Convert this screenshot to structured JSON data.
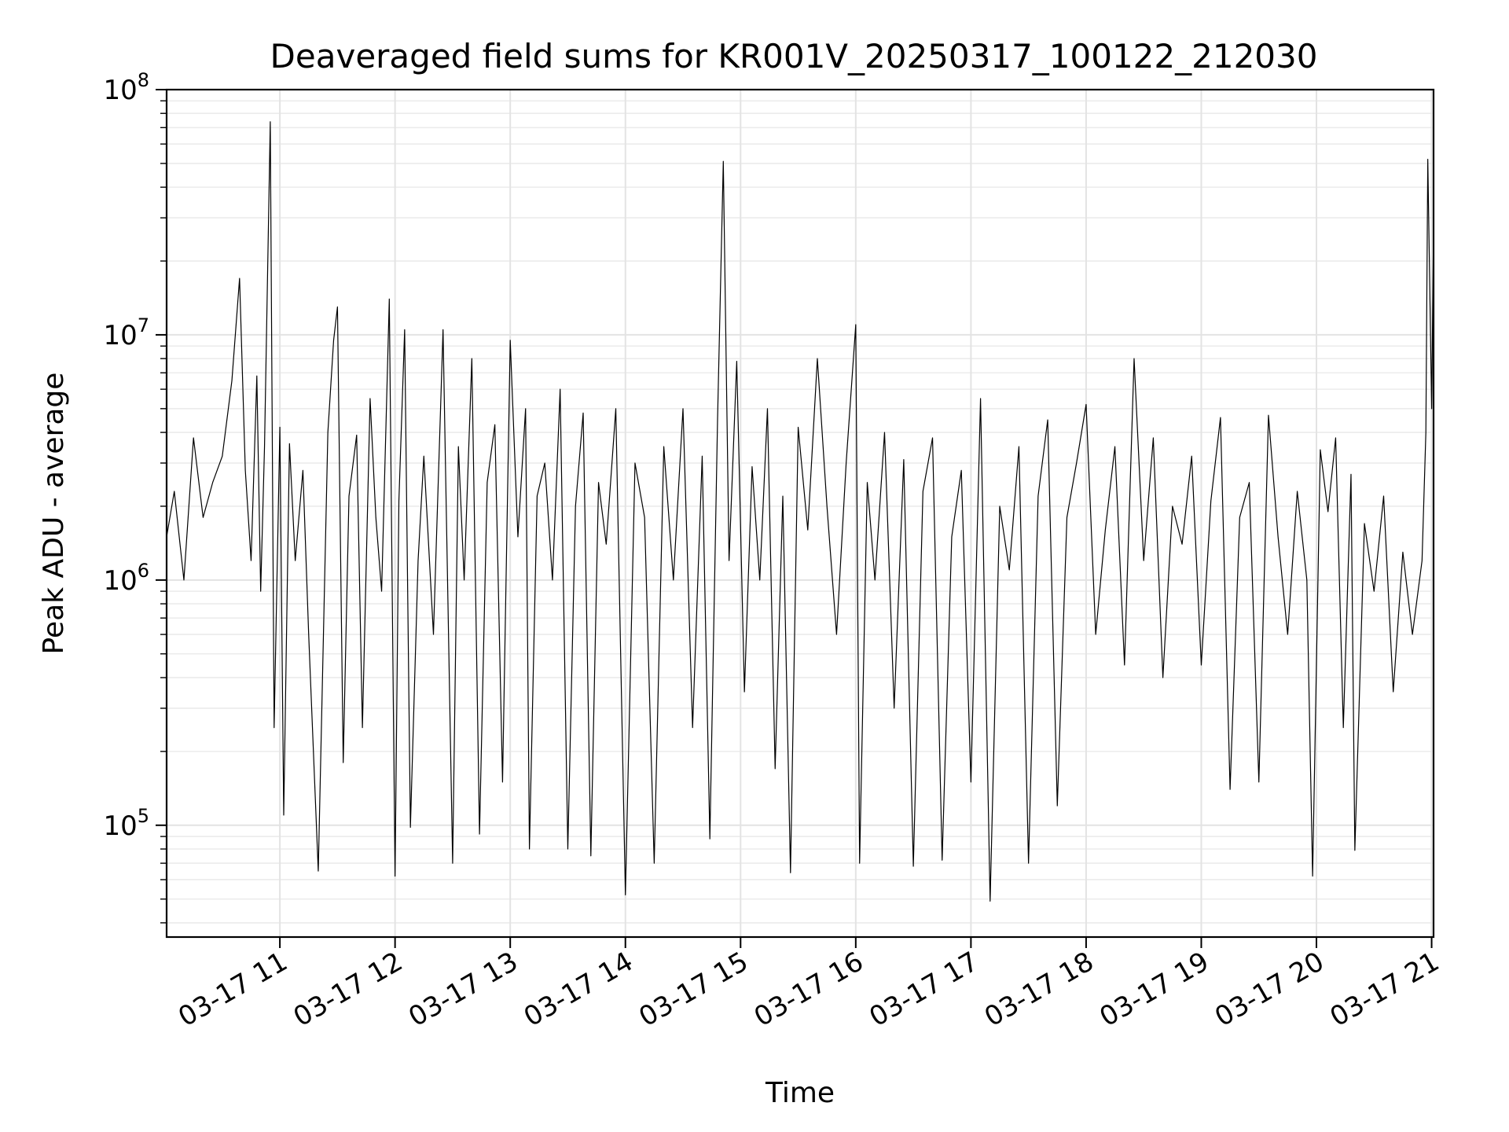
{
  "chart_data": {
    "type": "line",
    "title": "Deaveraged field sums for KR001V_20250317_100122_212030",
    "xlabel": "Time",
    "ylabel": "Peak ADU - average",
    "yscale": "log",
    "xlim": [
      "2025-03-17 10:01",
      "2025-03-17 21:01"
    ],
    "ylim": [
      35000,
      100000000
    ],
    "x_ticks": [
      "03-17 11",
      "03-17 12",
      "03-17 13",
      "03-17 14",
      "03-17 15",
      "03-17 16",
      "03-17 17",
      "03-17 18",
      "03-17 19",
      "03-17 20",
      "03-17 21"
    ],
    "y_ticks": [
      {
        "value": 100000,
        "base": "10",
        "exp": "5"
      },
      {
        "value": 1000000,
        "base": "10",
        "exp": "6"
      },
      {
        "value": 10000000,
        "base": "10",
        "exp": "7"
      },
      {
        "value": 100000000,
        "base": "10",
        "exp": "8"
      }
    ],
    "grid": true,
    "line_color": "#000000",
    "series": [
      {
        "points": [
          [
            "10:01",
            1500000
          ],
          [
            "10:05",
            2300000
          ],
          [
            "10:10",
            1000000
          ],
          [
            "10:15",
            3800000
          ],
          [
            "10:20",
            1800000
          ],
          [
            "10:25",
            2500000
          ],
          [
            "10:30",
            3200000
          ],
          [
            "10:35",
            6500000
          ],
          [
            "10:39",
            17000000
          ],
          [
            "10:42",
            2800000
          ],
          [
            "10:45",
            1200000
          ],
          [
            "10:48",
            6800000
          ],
          [
            "10:50",
            900000
          ],
          [
            "10:52",
            3500000
          ],
          [
            "10:55",
            74000000
          ],
          [
            "10:57",
            250000
          ],
          [
            "11:00",
            4200000
          ],
          [
            "11:02",
            110000
          ],
          [
            "11:05",
            3600000
          ],
          [
            "11:08",
            1200000
          ],
          [
            "11:12",
            2800000
          ],
          [
            "11:15",
            600000
          ],
          [
            "11:20",
            65000
          ],
          [
            "11:25",
            4000000
          ],
          [
            "11:28",
            9500000
          ],
          [
            "11:30",
            13000000
          ],
          [
            "11:33",
            180000
          ],
          [
            "11:36",
            2200000
          ],
          [
            "11:40",
            3900000
          ],
          [
            "11:43",
            250000
          ],
          [
            "11:47",
            5500000
          ],
          [
            "11:50",
            1800000
          ],
          [
            "11:53",
            900000
          ],
          [
            "11:57",
            14000000
          ],
          [
            "12:00",
            62000
          ],
          [
            "12:02",
            2100000
          ],
          [
            "12:05",
            10500000
          ],
          [
            "12:08",
            98000
          ],
          [
            "12:12",
            1200000
          ],
          [
            "12:15",
            3200000
          ],
          [
            "12:20",
            600000
          ],
          [
            "12:25",
            10500000
          ],
          [
            "12:30",
            70000
          ],
          [
            "12:33",
            3500000
          ],
          [
            "12:36",
            1000000
          ],
          [
            "12:40",
            8000000
          ],
          [
            "12:44",
            92000
          ],
          [
            "12:48",
            2500000
          ],
          [
            "12:52",
            4300000
          ],
          [
            "12:56",
            150000
          ],
          [
            "13:00",
            9500000
          ],
          [
            "13:04",
            1500000
          ],
          [
            "13:08",
            5000000
          ],
          [
            "13:10",
            80000
          ],
          [
            "13:14",
            2200000
          ],
          [
            "13:18",
            3000000
          ],
          [
            "13:22",
            1000000
          ],
          [
            "13:26",
            6000000
          ],
          [
            "13:30",
            80000
          ],
          [
            "13:34",
            2000000
          ],
          [
            "13:38",
            4800000
          ],
          [
            "13:42",
            75000
          ],
          [
            "13:46",
            2500000
          ],
          [
            "13:50",
            1400000
          ],
          [
            "13:55",
            5000000
          ],
          [
            "14:00",
            52000
          ],
          [
            "14:05",
            3000000
          ],
          [
            "14:10",
            1800000
          ],
          [
            "14:15",
            70000
          ],
          [
            "14:20",
            3500000
          ],
          [
            "14:25",
            1000000
          ],
          [
            "14:30",
            5000000
          ],
          [
            "14:35",
            250000
          ],
          [
            "14:40",
            3200000
          ],
          [
            "14:44",
            88000
          ],
          [
            "14:48",
            4500000
          ],
          [
            "14:51",
            51000000
          ],
          [
            "14:54",
            1200000
          ],
          [
            "14:58",
            7800000
          ],
          [
            "15:02",
            350000
          ],
          [
            "15:06",
            2900000
          ],
          [
            "15:10",
            1000000
          ],
          [
            "15:14",
            5000000
          ],
          [
            "15:18",
            170000
          ],
          [
            "15:22",
            2200000
          ],
          [
            "15:26",
            64000
          ],
          [
            "15:30",
            4200000
          ],
          [
            "15:35",
            1600000
          ],
          [
            "15:40",
            8000000
          ],
          [
            "15:45",
            2000000
          ],
          [
            "15:50",
            600000
          ],
          [
            "15:55",
            3000000
          ],
          [
            "16:00",
            11000000
          ],
          [
            "16:02",
            70000
          ],
          [
            "16:06",
            2500000
          ],
          [
            "16:10",
            1000000
          ],
          [
            "16:15",
            4000000
          ],
          [
            "16:20",
            300000
          ],
          [
            "16:25",
            3100000
          ],
          [
            "16:30",
            68000
          ],
          [
            "16:35",
            2300000
          ],
          [
            "16:40",
            3800000
          ],
          [
            "16:45",
            72000
          ],
          [
            "16:50",
            1500000
          ],
          [
            "16:55",
            2800000
          ],
          [
            "17:00",
            150000
          ],
          [
            "17:05",
            5500000
          ],
          [
            "17:10",
            49000
          ],
          [
            "17:15",
            2000000
          ],
          [
            "17:20",
            1100000
          ],
          [
            "17:25",
            3500000
          ],
          [
            "17:30",
            70000
          ],
          [
            "17:35",
            2200000
          ],
          [
            "17:40",
            4500000
          ],
          [
            "17:45",
            120000
          ],
          [
            "17:50",
            1800000
          ],
          [
            "17:55",
            3000000
          ],
          [
            "18:00",
            5200000
          ],
          [
            "18:05",
            600000
          ],
          [
            "18:10",
            1600000
          ],
          [
            "18:15",
            3500000
          ],
          [
            "18:20",
            450000
          ],
          [
            "18:25",
            8000000
          ],
          [
            "18:30",
            1200000
          ],
          [
            "18:35",
            3800000
          ],
          [
            "18:40",
            400000
          ],
          [
            "18:45",
            2000000
          ],
          [
            "18:50",
            1400000
          ],
          [
            "18:55",
            3200000
          ],
          [
            "19:00",
            450000
          ],
          [
            "19:05",
            2100000
          ],
          [
            "19:10",
            4600000
          ],
          [
            "19:15",
            140000
          ],
          [
            "19:20",
            1800000
          ],
          [
            "19:25",
            2500000
          ],
          [
            "19:30",
            150000
          ],
          [
            "19:35",
            4700000
          ],
          [
            "19:40",
            1500000
          ],
          [
            "19:45",
            600000
          ],
          [
            "19:50",
            2300000
          ],
          [
            "19:55",
            1000000
          ],
          [
            "19:58",
            62000
          ],
          [
            "20:02",
            3400000
          ],
          [
            "20:06",
            1900000
          ],
          [
            "20:10",
            3800000
          ],
          [
            "20:14",
            250000
          ],
          [
            "20:18",
            2700000
          ],
          [
            "20:20",
            79000
          ],
          [
            "20:25",
            1700000
          ],
          [
            "20:30",
            900000
          ],
          [
            "20:35",
            2200000
          ],
          [
            "20:40",
            350000
          ],
          [
            "20:45",
            1300000
          ],
          [
            "20:50",
            600000
          ],
          [
            "20:55",
            1200000
          ],
          [
            "20:57",
            4000000
          ],
          [
            "20:58",
            52000000
          ],
          [
            "21:00",
            5000000
          ],
          [
            "21:01",
            28000000
          ],
          [
            "21:01",
            1200000
          ]
        ]
      }
    ]
  }
}
